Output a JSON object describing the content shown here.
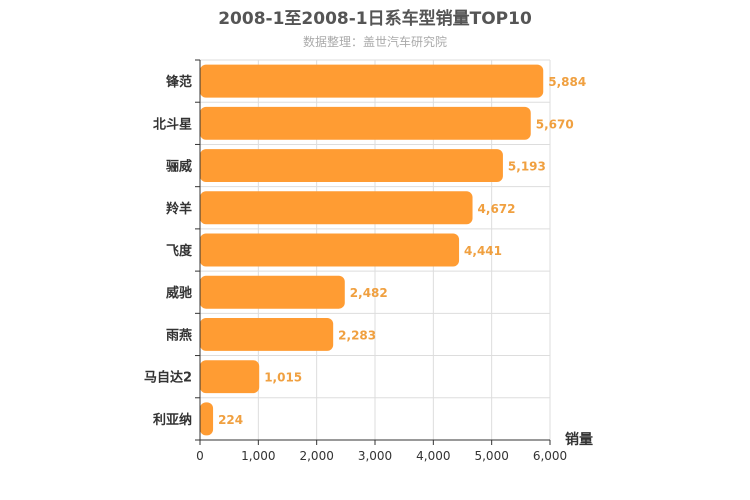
{
  "chart_data": {
    "type": "bar",
    "orientation": "horizontal",
    "title": "2008-1至2008-1日系车型销量TOP10",
    "subtitle": "数据整理：盖世汽车研究院",
    "xlabel": "销量",
    "xlim": [
      0,
      6000
    ],
    "x_ticks": [
      "0",
      "1,000",
      "2,000",
      "3,000",
      "4,000",
      "5,000",
      "6,000"
    ],
    "categories": [
      "锋范",
      "北斗星",
      "骊威",
      "羚羊",
      "飞度",
      "威驰",
      "雨燕",
      "马自达2",
      "利亚纳"
    ],
    "values": [
      5884,
      5670,
      5193,
      4672,
      4441,
      2482,
      2283,
      1015,
      224
    ],
    "value_labels": [
      "5,884",
      "5,670",
      "5,193",
      "4,672",
      "4,441",
      "2,482",
      "2,283",
      "1,015",
      "224"
    ],
    "grid": true,
    "colors": {
      "bar": "#ff9c33",
      "label": "#f0a040",
      "grid": "#dddddd",
      "axis": "#333333"
    }
  }
}
